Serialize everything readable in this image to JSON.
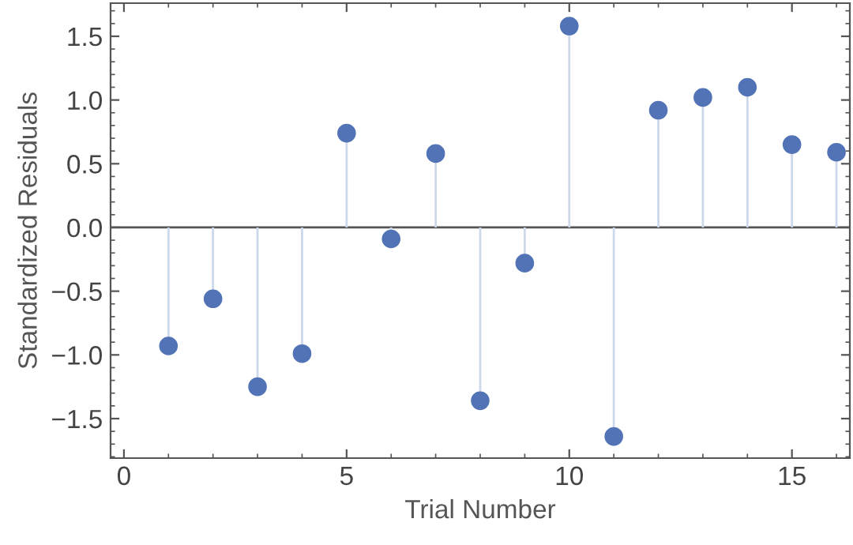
{
  "chart_data": {
    "type": "lollipop",
    "xlabel": "Trial Number",
    "ylabel": "Standardized Residuals",
    "x": [
      1,
      2,
      3,
      4,
      5,
      6,
      7,
      8,
      9,
      10,
      11,
      12,
      13,
      14,
      15,
      16
    ],
    "series": [
      {
        "color": "#5273b6",
        "values": [
          -0.93,
          -0.56,
          -1.25,
          -0.99,
          0.74,
          -0.09,
          0.58,
          -1.36,
          -0.28,
          1.58,
          -1.64,
          0.92,
          1.02,
          1.1,
          0.65,
          0.59
        ]
      }
    ],
    "xlim": [
      -0.3,
      16.3
    ],
    "ylim": [
      -1.81,
      1.76
    ],
    "xticks": [
      0,
      5,
      10,
      15
    ],
    "yticks": [
      {
        "value": -1.5,
        "label": "−1.5"
      },
      {
        "value": -1,
        "label": "−1.0"
      },
      {
        "value": -0.5,
        "label": "−0.5"
      },
      {
        "value": 0,
        "label": "0.0"
      },
      {
        "value": 0.5,
        "label": "0.5"
      },
      {
        "value": 1,
        "label": "1.0"
      },
      {
        "value": 1.5,
        "label": "1.5"
      }
    ],
    "ref_lines": [
      {
        "axis": "y",
        "value": 0,
        "color": "#555555"
      }
    ],
    "grid": false,
    "legend": false,
    "marker": "circle"
  }
}
